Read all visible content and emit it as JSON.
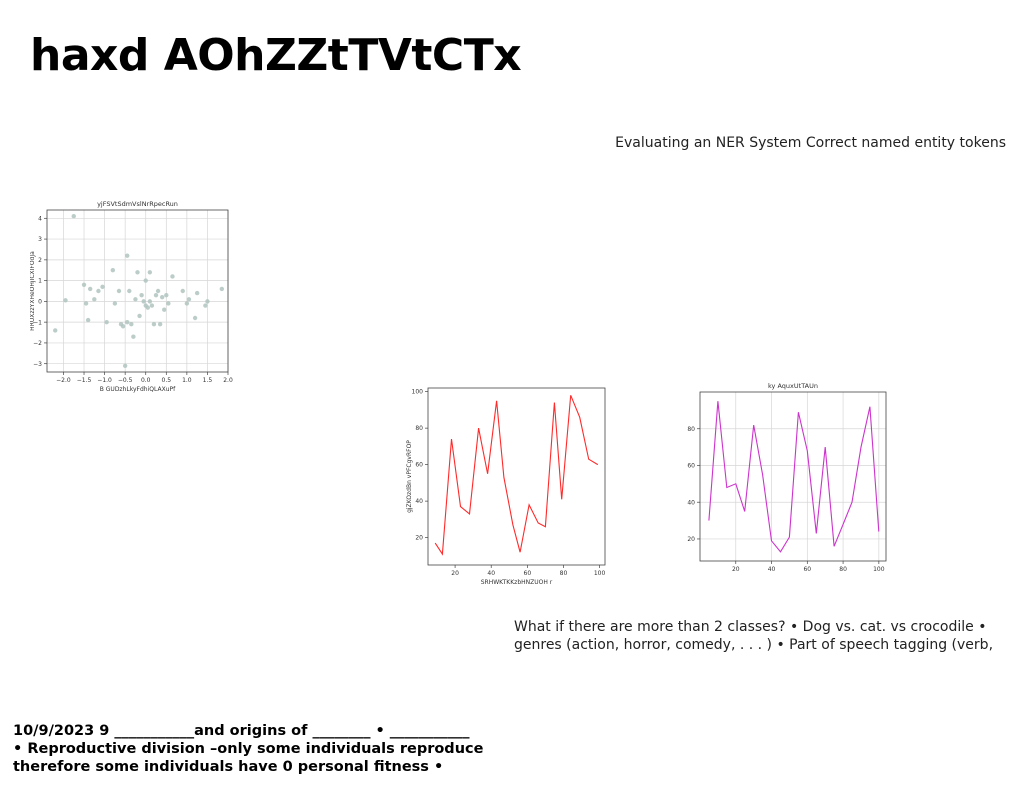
{
  "slide": {
    "title": "haxd AOhZZtTVtCTx",
    "subtitle": "Evaluating an NER System Correct named entity tokens",
    "body": "What if there are more than 2 classes? • Dog vs. cat. vs crocodile • genres (action, horror, comedy, . . . ) • Part of speech tagging (verb,",
    "footer": {
      "line1": "10/9/2023 9 ___________and origins of ________ • ___________",
      "line2": "• Reproductive division –only some individuals reproduce",
      "line3": "therefore some individuals have 0 personal fitness •"
    }
  },
  "chart_data": [
    {
      "type": "scatter",
      "title": "yjFSVtSdmVslNrRpecRun",
      "xlabel": "B GUDzhLkyFdhiQLAXuPf",
      "ylabel": "HRUXzzYXHeOHjICXIFOdJa",
      "xlim": [
        -2.4,
        2.0
      ],
      "ylim": [
        -3.4,
        4.4
      ],
      "xticks": [
        "−2.0",
        "−1.5",
        "−1.0",
        "−0.5",
        "0.0",
        "0.5",
        "1.0",
        "1.5",
        "2.0"
      ],
      "yticks": [
        "−3",
        "−2",
        "−1",
        "0",
        "1",
        "2",
        "3",
        "4"
      ],
      "grid": true,
      "color": "#b0c4c0",
      "points": [
        {
          "x": -2.2,
          "y": -1.4
        },
        {
          "x": -1.95,
          "y": 0.05
        },
        {
          "x": -1.75,
          "y": 4.1
        },
        {
          "x": -1.5,
          "y": 0.8
        },
        {
          "x": -1.45,
          "y": -0.1
        },
        {
          "x": -1.4,
          "y": -0.9
        },
        {
          "x": -1.35,
          "y": 0.6
        },
        {
          "x": -1.25,
          "y": 0.1
        },
        {
          "x": -1.15,
          "y": 0.5
        },
        {
          "x": -1.05,
          "y": 0.7
        },
        {
          "x": -0.95,
          "y": -1.0
        },
        {
          "x": -0.8,
          "y": 1.5
        },
        {
          "x": -0.75,
          "y": -0.1
        },
        {
          "x": -0.65,
          "y": 0.5
        },
        {
          "x": -0.6,
          "y": -1.1
        },
        {
          "x": -0.55,
          "y": -1.2
        },
        {
          "x": -0.5,
          "y": -3.1
        },
        {
          "x": -0.45,
          "y": 2.2
        },
        {
          "x": -0.45,
          "y": -1.0
        },
        {
          "x": -0.4,
          "y": 0.5
        },
        {
          "x": -0.35,
          "y": -1.1
        },
        {
          "x": -0.3,
          "y": -1.7
        },
        {
          "x": -0.25,
          "y": 0.1
        },
        {
          "x": -0.2,
          "y": 1.4
        },
        {
          "x": -0.15,
          "y": -0.7
        },
        {
          "x": -0.1,
          "y": 0.3
        },
        {
          "x": -0.05,
          "y": 0.0
        },
        {
          "x": 0.0,
          "y": 1.0
        },
        {
          "x": 0.0,
          "y": -0.2
        },
        {
          "x": 0.05,
          "y": -0.3
        },
        {
          "x": 0.1,
          "y": 1.4
        },
        {
          "x": 0.1,
          "y": 0.0
        },
        {
          "x": 0.15,
          "y": -0.2
        },
        {
          "x": 0.2,
          "y": -1.1
        },
        {
          "x": 0.25,
          "y": 0.3
        },
        {
          "x": 0.3,
          "y": 0.5
        },
        {
          "x": 0.35,
          "y": -1.1
        },
        {
          "x": 0.4,
          "y": 0.2
        },
        {
          "x": 0.45,
          "y": -0.4
        },
        {
          "x": 0.5,
          "y": 0.3
        },
        {
          "x": 0.55,
          "y": -0.1
        },
        {
          "x": 0.65,
          "y": 1.2
        },
        {
          "x": 0.9,
          "y": 0.5
        },
        {
          "x": 1.0,
          "y": -0.1
        },
        {
          "x": 1.05,
          "y": 0.1
        },
        {
          "x": 1.2,
          "y": -0.8
        },
        {
          "x": 1.25,
          "y": 0.4
        },
        {
          "x": 1.45,
          "y": -0.2
        },
        {
          "x": 1.5,
          "y": 0.0
        },
        {
          "x": 1.85,
          "y": 0.6
        }
      ]
    },
    {
      "type": "line",
      "title": "",
      "xlabel": "SRHWKTKKzbHNZUOH r",
      "ylabel": "gjZKOzdBn vPFCgvRFOP",
      "xlim": [
        5,
        103
      ],
      "ylim": [
        5,
        102
      ],
      "xticks": [
        20,
        40,
        60,
        80,
        100
      ],
      "yticks": [
        20,
        40,
        60,
        80,
        100
      ],
      "grid": false,
      "color": "#ff2a2a",
      "x": [
        9,
        13,
        18,
        23,
        28,
        33,
        38,
        43,
        47,
        52,
        56,
        61,
        66,
        70,
        75,
        79,
        84,
        89,
        94,
        99
      ],
      "y": [
        17,
        11,
        74,
        37,
        33,
        80,
        55,
        95,
        53,
        27,
        12,
        38,
        28,
        26,
        94,
        41,
        98,
        86,
        63,
        60
      ]
    },
    {
      "type": "line",
      "title": "ky AquxUtTAUn",
      "xlabel": "",
      "ylabel": "",
      "xlim": [
        0,
        104
      ],
      "ylim": [
        8,
        100
      ],
      "xticks": [
        20,
        40,
        60,
        80,
        100
      ],
      "yticks": [
        20,
        40,
        60,
        80
      ],
      "grid": true,
      "color": "#cc33cc",
      "x": [
        5,
        10,
        15,
        20,
        25,
        30,
        35,
        40,
        45,
        50,
        55,
        60,
        65,
        70,
        75,
        80,
        85,
        90,
        95,
        100
      ],
      "y": [
        30,
        95,
        48,
        50,
        35,
        82,
        55,
        19,
        13,
        21,
        89,
        68,
        23,
        70,
        16,
        28,
        40,
        70,
        92,
        24
      ]
    }
  ]
}
